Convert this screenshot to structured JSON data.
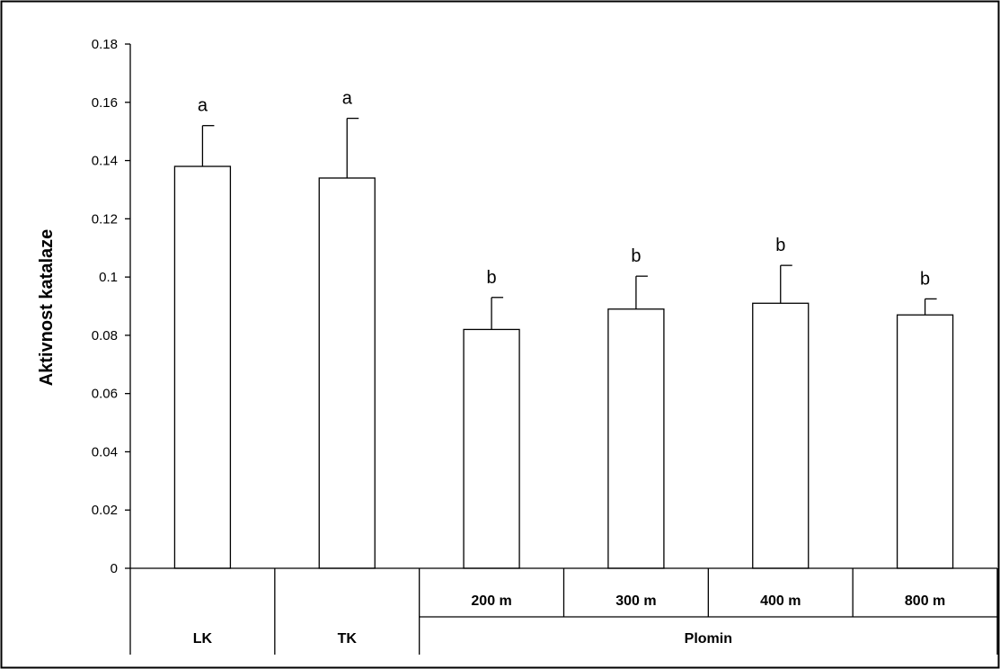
{
  "chart_data": {
    "type": "bar",
    "title": "",
    "xlabel": "",
    "ylabel": "Aktivnost katalaze",
    "ylim": [
      0,
      0.18
    ],
    "yticks": [
      "0",
      "0.02",
      "0.04",
      "0.06",
      "0.08",
      "0.1",
      "0.12",
      "0.14",
      "0.16",
      "0.18"
    ],
    "categories": [
      "LK",
      "TK",
      "200 m",
      "300 m",
      "400 m",
      "800 m"
    ],
    "values": [
      0.138,
      0.134,
      0.082,
      0.089,
      0.091,
      0.087
    ],
    "error_upper": [
      0.152,
      0.1545,
      0.093,
      0.1003,
      0.104,
      0.0925
    ],
    "significance_labels": [
      "a",
      "a",
      "b",
      "b",
      "b",
      "b"
    ],
    "group_label": "Plomin",
    "grid": false,
    "bar_fill": "#ffffff",
    "bar_stroke": "#000000"
  }
}
